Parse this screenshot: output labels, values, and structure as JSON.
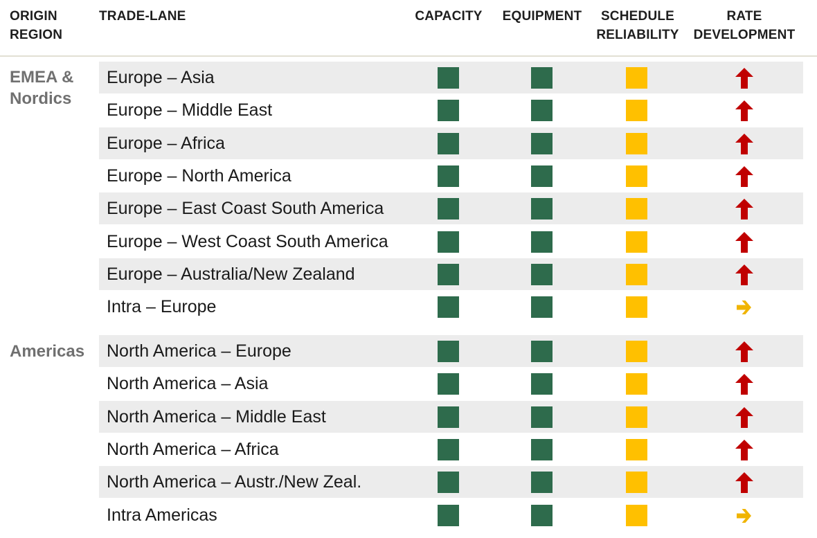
{
  "colors": {
    "good": "#2e6b4c",
    "medium": "#ffc000",
    "rate_up": "#c00000",
    "rate_flat": "#f0b400"
  },
  "headers": {
    "origin_region": [
      "ORIGIN",
      "REGION"
    ],
    "trade_lane": "TRADE-LANE",
    "capacity": "CAPACITY",
    "equipment": "EQUIPMENT",
    "schedule_reliability": [
      "SCHEDULE",
      "RELIABILITY"
    ],
    "rate_development": [
      "RATE",
      "DEVELOPMENT"
    ]
  },
  "regions": [
    {
      "name_lines": [
        "EMEA &",
        "Nordics"
      ],
      "lanes": [
        {
          "lane": "Europe – Asia",
          "capacity": "good",
          "equipment": "good",
          "schedule": "medium",
          "rate": "up"
        },
        {
          "lane": "Europe – Middle East",
          "capacity": "good",
          "equipment": "good",
          "schedule": "medium",
          "rate": "up"
        },
        {
          "lane": "Europe – Africa",
          "capacity": "good",
          "equipment": "good",
          "schedule": "medium",
          "rate": "up"
        },
        {
          "lane": "Europe – North America",
          "capacity": "good",
          "equipment": "good",
          "schedule": "medium",
          "rate": "up"
        },
        {
          "lane": "Europe – East Coast South America",
          "capacity": "good",
          "equipment": "good",
          "schedule": "medium",
          "rate": "up"
        },
        {
          "lane": "Europe – West Coast South America",
          "capacity": "good",
          "equipment": "good",
          "schedule": "medium",
          "rate": "up"
        },
        {
          "lane": "Europe – Australia/New Zealand",
          "capacity": "good",
          "equipment": "good",
          "schedule": "medium",
          "rate": "up"
        },
        {
          "lane": "Intra – Europe",
          "capacity": "good",
          "equipment": "good",
          "schedule": "medium",
          "rate": "flat"
        }
      ]
    },
    {
      "name_lines": [
        "Americas"
      ],
      "lanes": [
        {
          "lane": "North America – Europe",
          "capacity": "good",
          "equipment": "good",
          "schedule": "medium",
          "rate": "up"
        },
        {
          "lane": "North America – Asia",
          "capacity": "good",
          "equipment": "good",
          "schedule": "medium",
          "rate": "up"
        },
        {
          "lane": "North America – Middle East",
          "capacity": "good",
          "equipment": "good",
          "schedule": "medium",
          "rate": "up"
        },
        {
          "lane": "North America – Africa",
          "capacity": "good",
          "equipment": "good",
          "schedule": "medium",
          "rate": "up"
        },
        {
          "lane": "North America – Austr./New Zeal.",
          "capacity": "good",
          "equipment": "good",
          "schedule": "medium",
          "rate": "up"
        },
        {
          "lane": "Intra Americas",
          "capacity": "good",
          "equipment": "good",
          "schedule": "medium",
          "rate": "flat"
        }
      ]
    }
  ]
}
